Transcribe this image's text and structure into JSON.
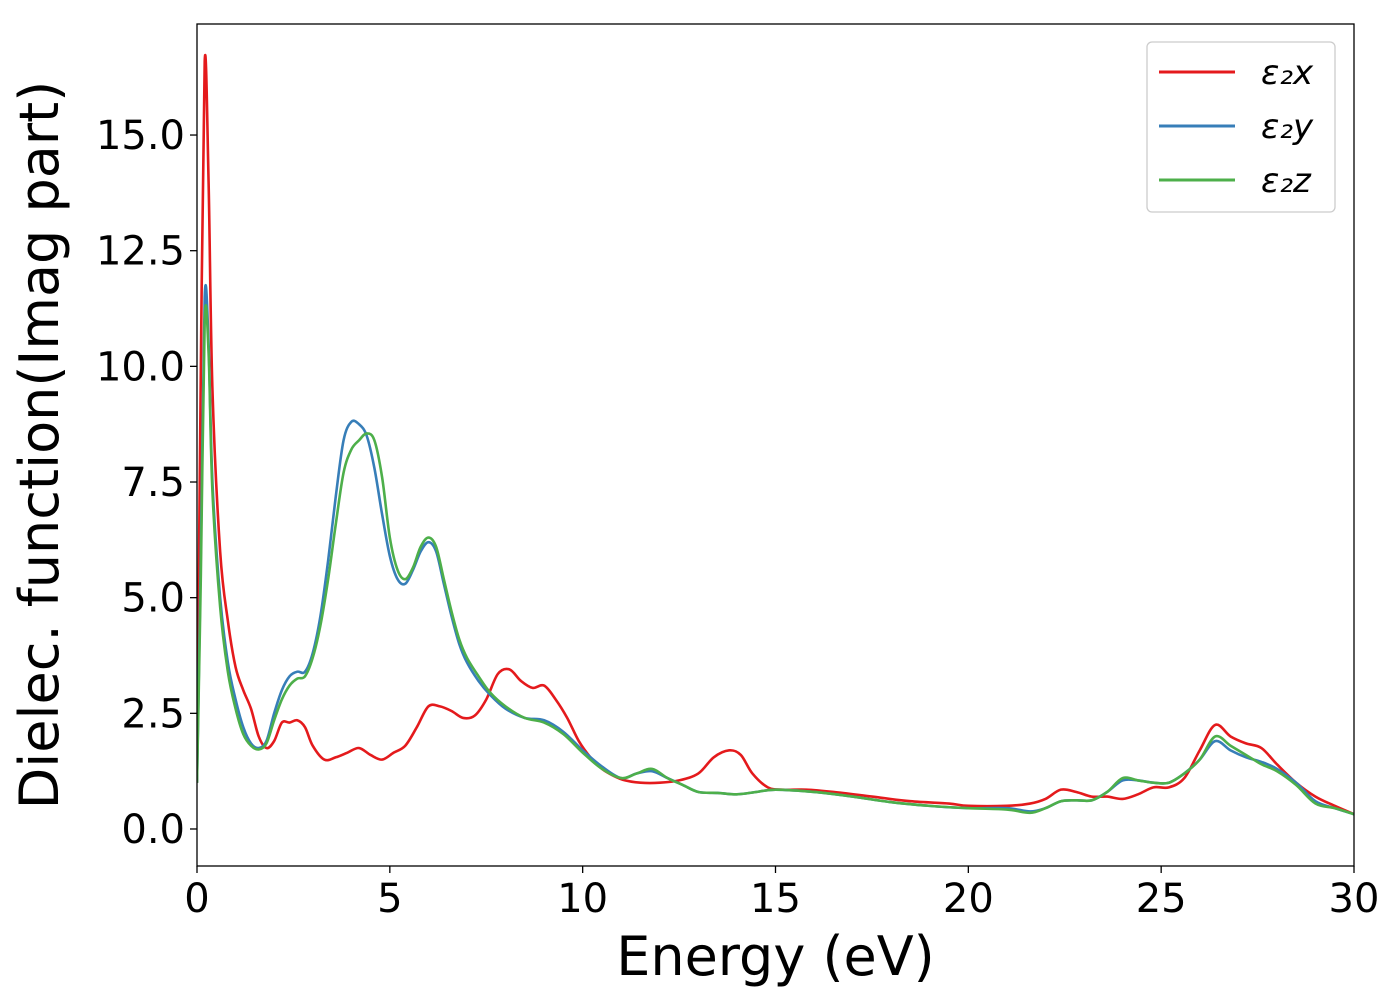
{
  "chart_data": {
    "type": "line",
    "xlabel": "Energy (eV)",
    "ylabel": "Dielec. function(Imag part)",
    "xlim": [
      0,
      30
    ],
    "ylim": [
      -0.8,
      17.4
    ],
    "xticks": [
      0,
      5,
      10,
      15,
      20,
      25,
      30
    ],
    "xtick_labels": [
      "0",
      "5",
      "10",
      "15",
      "20",
      "25",
      "30"
    ],
    "yticks": [
      0,
      2.5,
      5,
      7.5,
      10,
      12.5,
      15
    ],
    "ytick_labels": [
      "0.0",
      "2.5",
      "5.0",
      "7.5",
      "10.0",
      "12.5",
      "15.0"
    ],
    "grid": false,
    "legend_position": "upper-right",
    "series": [
      {
        "name": "ε₂x",
        "color": "#e41a1c",
        "x": [
          0,
          0.1,
          0.2,
          0.3,
          0.4,
          0.6,
          0.8,
          1.0,
          1.2,
          1.4,
          1.6,
          1.8,
          2.0,
          2.2,
          2.4,
          2.6,
          2.8,
          3.0,
          3.3,
          3.6,
          3.9,
          4.2,
          4.5,
          4.8,
          5.1,
          5.4,
          5.7,
          6.0,
          6.3,
          6.6,
          6.9,
          7.2,
          7.5,
          7.8,
          8.1,
          8.4,
          8.7,
          9.0,
          9.3,
          9.6,
          9.9,
          10.2,
          10.5,
          10.8,
          11.1,
          11.5,
          12.0,
          12.5,
          13.0,
          13.4,
          13.8,
          14.1,
          14.4,
          14.8,
          15.2,
          15.8,
          16.5,
          17.5,
          18.5,
          19.5,
          20.0,
          21.0,
          21.6,
          22.0,
          22.4,
          22.8,
          23.2,
          23.6,
          24.0,
          24.4,
          24.8,
          25.2,
          25.6,
          26.0,
          26.4,
          26.8,
          27.2,
          27.6,
          28.0,
          28.5,
          29.0,
          29.5,
          30.0
        ],
        "y": [
          1.0,
          10.0,
          16.6,
          14.0,
          9.5,
          6.0,
          4.5,
          3.5,
          3.0,
          2.6,
          2.0,
          1.75,
          1.9,
          2.3,
          2.3,
          2.35,
          2.2,
          1.8,
          1.5,
          1.55,
          1.65,
          1.75,
          1.6,
          1.5,
          1.65,
          1.8,
          2.2,
          2.65,
          2.65,
          2.55,
          2.4,
          2.45,
          2.8,
          3.35,
          3.45,
          3.2,
          3.05,
          3.1,
          2.8,
          2.4,
          1.9,
          1.55,
          1.3,
          1.15,
          1.05,
          1.0,
          1.0,
          1.05,
          1.2,
          1.55,
          1.7,
          1.6,
          1.2,
          0.9,
          0.85,
          0.85,
          0.8,
          0.7,
          0.6,
          0.55,
          0.5,
          0.5,
          0.55,
          0.65,
          0.85,
          0.8,
          0.7,
          0.7,
          0.65,
          0.75,
          0.9,
          0.9,
          1.1,
          1.7,
          2.25,
          2.0,
          1.85,
          1.75,
          1.4,
          1.0,
          0.7,
          0.5,
          0.32
        ]
      },
      {
        "name": "ε₂y",
        "color": "#377eb8",
        "x": [
          0,
          0.1,
          0.2,
          0.3,
          0.4,
          0.6,
          0.8,
          1.0,
          1.2,
          1.4,
          1.6,
          1.8,
          2.0,
          2.2,
          2.4,
          2.6,
          2.8,
          3.0,
          3.2,
          3.4,
          3.6,
          3.8,
          4.0,
          4.2,
          4.4,
          4.6,
          4.8,
          5.0,
          5.2,
          5.4,
          5.6,
          5.8,
          6.0,
          6.2,
          6.4,
          6.6,
          6.8,
          7.0,
          7.3,
          7.6,
          8.0,
          8.5,
          9.0,
          9.5,
          10.0,
          10.5,
          11.0,
          11.4,
          11.8,
          12.2,
          12.6,
          13.0,
          13.5,
          14.0,
          14.5,
          15.0,
          16.0,
          17.0,
          18.0,
          19.0,
          20.0,
          21.0,
          21.6,
          22.0,
          22.4,
          22.8,
          23.2,
          23.6,
          24.0,
          24.4,
          24.8,
          25.2,
          25.6,
          26.0,
          26.4,
          26.8,
          27.2,
          27.6,
          28.0,
          28.5,
          29.0,
          29.5,
          30.0
        ],
        "y": [
          1.0,
          6.0,
          11.5,
          10.5,
          7.5,
          5.0,
          3.6,
          2.8,
          2.2,
          1.85,
          1.75,
          1.9,
          2.5,
          3.0,
          3.3,
          3.4,
          3.4,
          3.8,
          4.6,
          5.8,
          7.2,
          8.4,
          8.8,
          8.75,
          8.5,
          7.8,
          6.8,
          5.9,
          5.4,
          5.3,
          5.6,
          6.0,
          6.2,
          6.0,
          5.3,
          4.6,
          4.0,
          3.6,
          3.2,
          2.9,
          2.6,
          2.4,
          2.35,
          2.1,
          1.7,
          1.35,
          1.1,
          1.2,
          1.25,
          1.1,
          0.95,
          0.8,
          0.78,
          0.75,
          0.8,
          0.85,
          0.8,
          0.7,
          0.58,
          0.5,
          0.45,
          0.45,
          0.38,
          0.45,
          0.6,
          0.62,
          0.62,
          0.8,
          1.05,
          1.05,
          1.0,
          1.0,
          1.2,
          1.5,
          1.9,
          1.7,
          1.55,
          1.45,
          1.3,
          1.0,
          0.6,
          0.45,
          0.32
        ]
      },
      {
        "name": "ε₂z",
        "color": "#4daf4a",
        "x": [
          0,
          0.1,
          0.2,
          0.3,
          0.4,
          0.6,
          0.8,
          1.0,
          1.2,
          1.4,
          1.6,
          1.8,
          2.0,
          2.2,
          2.4,
          2.6,
          2.8,
          3.0,
          3.2,
          3.4,
          3.6,
          3.8,
          4.0,
          4.2,
          4.4,
          4.6,
          4.8,
          5.0,
          5.2,
          5.4,
          5.6,
          5.8,
          6.0,
          6.2,
          6.4,
          6.6,
          6.8,
          7.0,
          7.3,
          7.6,
          8.0,
          8.5,
          9.0,
          9.5,
          10.0,
          10.5,
          11.0,
          11.4,
          11.8,
          12.2,
          12.6,
          13.0,
          13.5,
          14.0,
          14.5,
          15.0,
          16.0,
          17.0,
          18.0,
          19.0,
          20.0,
          21.0,
          21.6,
          22.0,
          22.4,
          22.8,
          23.2,
          23.6,
          24.0,
          24.4,
          24.8,
          25.2,
          25.6,
          26.0,
          26.4,
          26.8,
          27.2,
          27.6,
          28.0,
          28.5,
          29.0,
          29.5,
          30.0
        ],
        "y": [
          1.0,
          5.5,
          11.0,
          10.3,
          7.3,
          4.8,
          3.4,
          2.6,
          2.05,
          1.8,
          1.72,
          1.85,
          2.35,
          2.8,
          3.1,
          3.25,
          3.3,
          3.7,
          4.4,
          5.4,
          6.6,
          7.7,
          8.2,
          8.4,
          8.55,
          8.4,
          7.6,
          6.3,
          5.6,
          5.4,
          5.65,
          6.1,
          6.3,
          6.1,
          5.4,
          4.7,
          4.1,
          3.7,
          3.3,
          2.95,
          2.65,
          2.4,
          2.3,
          2.05,
          1.65,
          1.3,
          1.1,
          1.2,
          1.3,
          1.1,
          0.95,
          0.8,
          0.78,
          0.75,
          0.8,
          0.85,
          0.8,
          0.7,
          0.58,
          0.5,
          0.45,
          0.42,
          0.35,
          0.45,
          0.6,
          0.62,
          0.62,
          0.8,
          1.1,
          1.05,
          1.0,
          1.0,
          1.2,
          1.5,
          2.0,
          1.8,
          1.6,
          1.4,
          1.25,
          0.95,
          0.55,
          0.45,
          0.32
        ]
      }
    ]
  }
}
